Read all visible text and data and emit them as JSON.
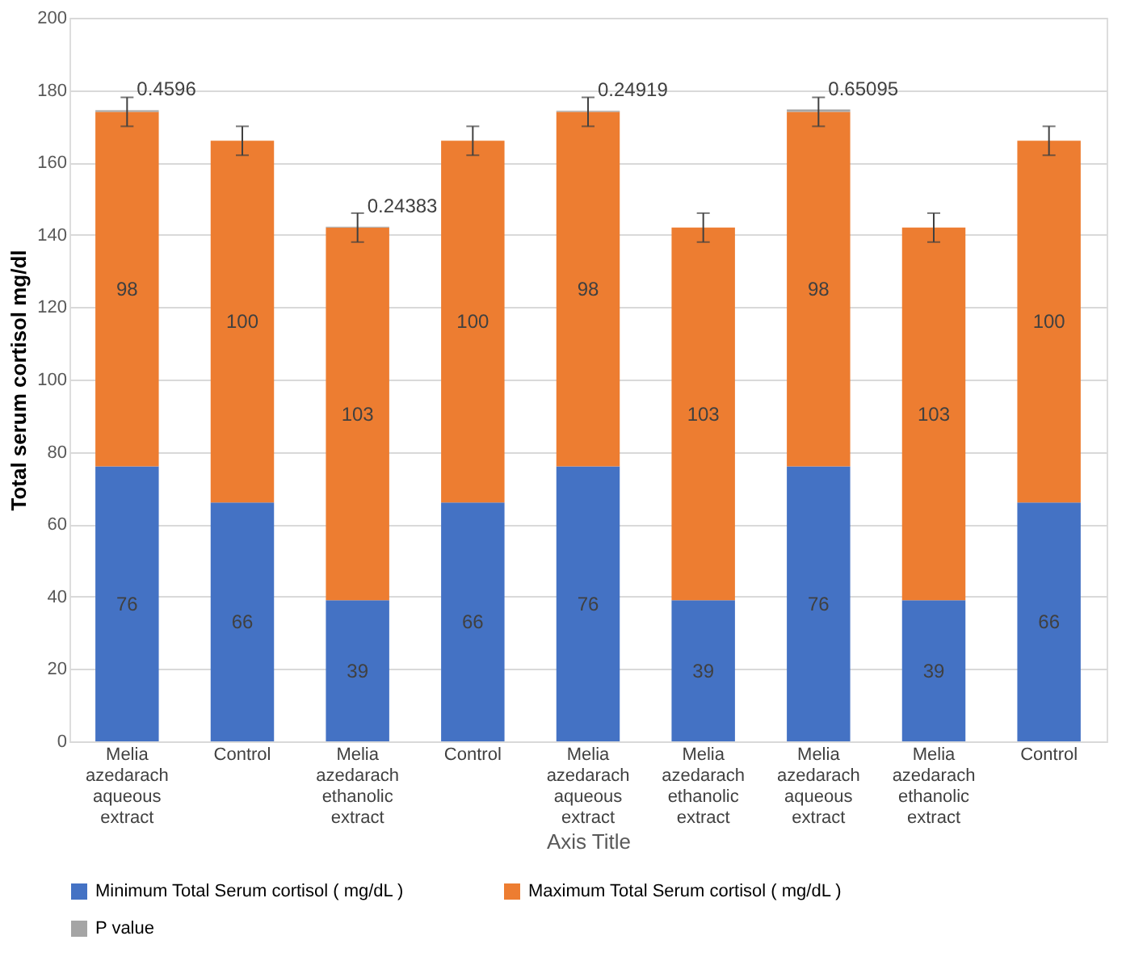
{
  "chart_data": {
    "type": "bar",
    "stacked": true,
    "xlabel": "Axis Title",
    "ylabel": "Total serum cortisol mg/dl",
    "categories": [
      "Melia azedarach aqueous extract",
      "Control",
      "Melia azedarach ethanolic extract",
      "Control",
      "Melia azedarach aqueous extract",
      "Melia azedarach ethanolic extract",
      "Melia azedarach aqueous extract",
      "Melia azedarach ethanolic extract",
      "Control"
    ],
    "series": [
      {
        "name": "Minimum Total Serum cortisol ( mg/dL )",
        "color": "#4472c4",
        "values": [
          76,
          66,
          39,
          66,
          76,
          39,
          76,
          39,
          66
        ]
      },
      {
        "name": "Maximum Total Serum cortisol ( mg/dL )",
        "color": "#ed7d31",
        "values": [
          98,
          100,
          103,
          100,
          98,
          103,
          98,
          103,
          100
        ],
        "errors": [
          4,
          4,
          4,
          4,
          4,
          4,
          4,
          4,
          4
        ]
      },
      {
        "name": "P value",
        "color": "#a5a5a5",
        "values": [
          0.4596,
          null,
          0.24383,
          null,
          0.24919,
          null,
          0.65095,
          null,
          null
        ]
      }
    ],
    "ylim": [
      0,
      200
    ],
    "yticks": [
      0,
      20,
      40,
      60,
      80,
      100,
      120,
      140,
      160,
      180,
      200
    ],
    "grid": "y",
    "legend": "bottom",
    "data_labels": true
  }
}
